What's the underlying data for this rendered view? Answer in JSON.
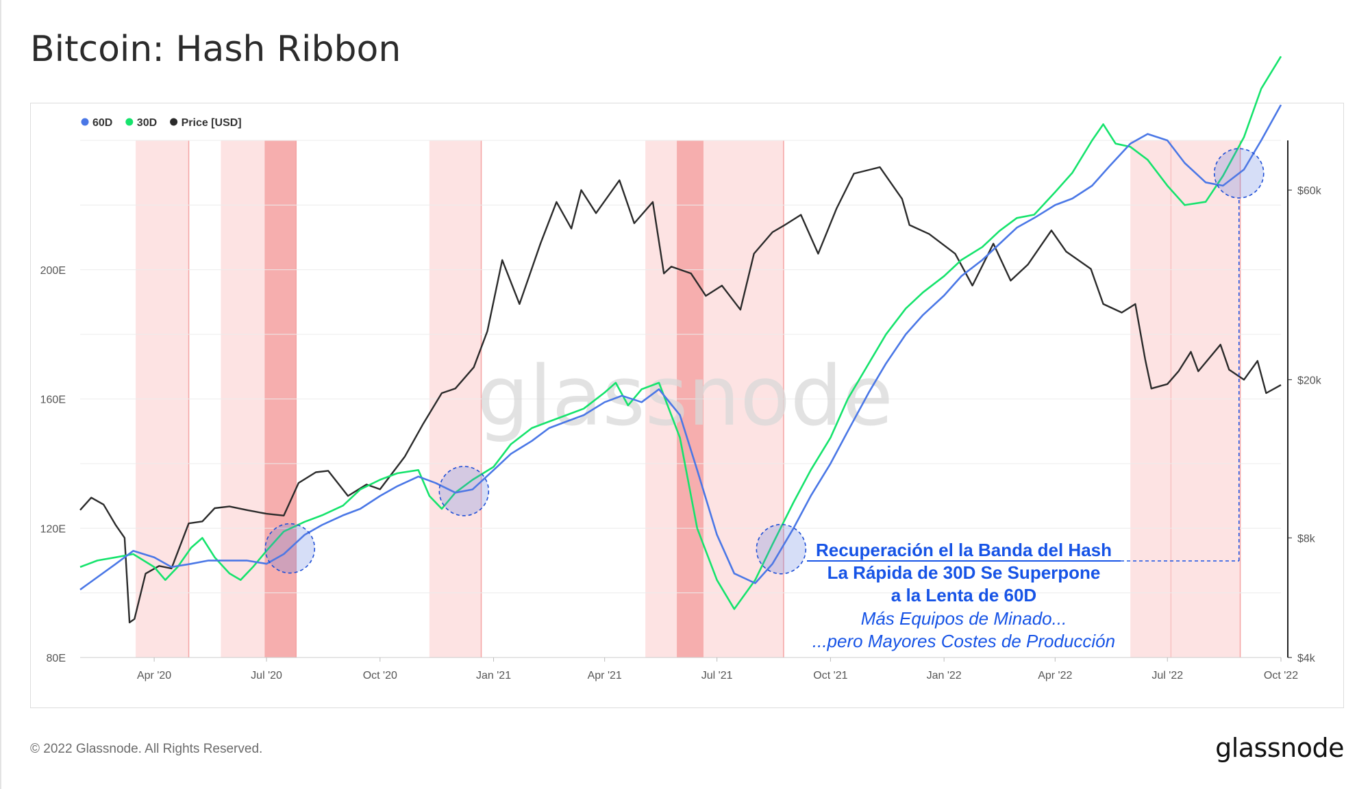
{
  "page": {
    "title": "Bitcoin: Hash Ribbon",
    "copyright": "© 2022 Glassnode. All Rights Reserved.",
    "brand": "glassnode",
    "watermark": "glassnode"
  },
  "chart_data": {
    "type": "line",
    "title": "Bitcoin: Hash Ribbon",
    "x_range": [
      "2020-02-01",
      "2022-10-01"
    ],
    "x_ticks": [
      "Apr '20",
      "Jul '20",
      "Oct '20",
      "Jan '21",
      "Apr '21",
      "Jul '21",
      "Oct '21",
      "Jan '22",
      "Apr '22",
      "Jul '22",
      "Oct '22"
    ],
    "y_left": {
      "label": "",
      "ticks": [
        "80E",
        "120E",
        "160E",
        "200E"
      ],
      "range": [
        80,
        240
      ]
    },
    "y_right": {
      "label": "",
      "scale": "log",
      "ticks": [
        "$4k",
        "$8k",
        "$20k",
        "$60k"
      ],
      "range": [
        4000,
        80000
      ]
    },
    "legend": {
      "placement": "top-left",
      "items": [
        {
          "name": "60D",
          "color": "#4a77e6"
        },
        {
          "name": "30D",
          "color": "#15e36c"
        },
        {
          "name": "Price [USD]",
          "color": "#2a2a2a"
        }
      ]
    },
    "series": [
      {
        "name": "60D",
        "axis": "left",
        "color": "#4a77e6",
        "points": [
          [
            "2020-02-01",
            101
          ],
          [
            "2020-03-01",
            109
          ],
          [
            "2020-03-15",
            113
          ],
          [
            "2020-04-01",
            111
          ],
          [
            "2020-04-15",
            108
          ],
          [
            "2020-05-01",
            109
          ],
          [
            "2020-05-15",
            110
          ],
          [
            "2020-06-01",
            110
          ],
          [
            "2020-06-15",
            110
          ],
          [
            "2020-07-01",
            109
          ],
          [
            "2020-07-15",
            112
          ],
          [
            "2020-08-01",
            118
          ],
          [
            "2020-08-15",
            121
          ],
          [
            "2020-09-01",
            124
          ],
          [
            "2020-09-15",
            126
          ],
          [
            "2020-10-01",
            130
          ],
          [
            "2020-10-15",
            133
          ],
          [
            "2020-11-01",
            136
          ],
          [
            "2020-11-15",
            134
          ],
          [
            "2020-12-01",
            131
          ],
          [
            "2020-12-15",
            132
          ],
          [
            "2021-01-01",
            138
          ],
          [
            "2021-01-15",
            143
          ],
          [
            "2021-02-01",
            147
          ],
          [
            "2021-02-15",
            151
          ],
          [
            "2021-03-01",
            153
          ],
          [
            "2021-03-15",
            155
          ],
          [
            "2021-04-01",
            159
          ],
          [
            "2021-04-15",
            161
          ],
          [
            "2021-05-01",
            159
          ],
          [
            "2021-05-15",
            163
          ],
          [
            "2021-06-01",
            155
          ],
          [
            "2021-06-15",
            138
          ],
          [
            "2021-07-01",
            118
          ],
          [
            "2021-07-15",
            106
          ],
          [
            "2021-08-01",
            103
          ],
          [
            "2021-08-15",
            109
          ],
          [
            "2021-09-01",
            120
          ],
          [
            "2021-09-15",
            130
          ],
          [
            "2021-10-01",
            140
          ],
          [
            "2021-10-15",
            150
          ],
          [
            "2021-11-01",
            162
          ],
          [
            "2021-11-15",
            171
          ],
          [
            "2021-12-01",
            180
          ],
          [
            "2021-12-15",
            186
          ],
          [
            "2022-01-01",
            192
          ],
          [
            "2022-01-15",
            198
          ],
          [
            "2022-02-01",
            203
          ],
          [
            "2022-02-15",
            208
          ],
          [
            "2022-03-01",
            213
          ],
          [
            "2022-03-15",
            216
          ],
          [
            "2022-04-01",
            220
          ],
          [
            "2022-04-15",
            222
          ],
          [
            "2022-05-01",
            226
          ],
          [
            "2022-05-15",
            232
          ],
          [
            "2022-06-01",
            239
          ],
          [
            "2022-06-15",
            242
          ],
          [
            "2022-07-01",
            240
          ],
          [
            "2022-07-15",
            233
          ],
          [
            "2022-08-01",
            227
          ],
          [
            "2022-08-15",
            226
          ],
          [
            "2022-09-01",
            231
          ],
          [
            "2022-09-15",
            240
          ],
          [
            "2022-10-01",
            251
          ]
        ]
      },
      {
        "name": "30D",
        "axis": "left",
        "color": "#15e36c",
        "points": [
          [
            "2020-02-01",
            108
          ],
          [
            "2020-02-15",
            110
          ],
          [
            "2020-03-01",
            111
          ],
          [
            "2020-03-15",
            112
          ],
          [
            "2020-04-01",
            108
          ],
          [
            "2020-04-10",
            104
          ],
          [
            "2020-04-20",
            108
          ],
          [
            "2020-05-01",
            114
          ],
          [
            "2020-05-10",
            117
          ],
          [
            "2020-05-20",
            111
          ],
          [
            "2020-06-01",
            106
          ],
          [
            "2020-06-10",
            104
          ],
          [
            "2020-06-20",
            108
          ],
          [
            "2020-07-01",
            113
          ],
          [
            "2020-07-15",
            119
          ],
          [
            "2020-08-01",
            122
          ],
          [
            "2020-08-15",
            124
          ],
          [
            "2020-09-01",
            127
          ],
          [
            "2020-09-15",
            132
          ],
          [
            "2020-10-01",
            135
          ],
          [
            "2020-10-15",
            137
          ],
          [
            "2020-11-01",
            138
          ],
          [
            "2020-11-10",
            130
          ],
          [
            "2020-11-20",
            126
          ],
          [
            "2020-12-01",
            131
          ],
          [
            "2020-12-15",
            135
          ],
          [
            "2021-01-01",
            139
          ],
          [
            "2021-01-15",
            146
          ],
          [
            "2021-02-01",
            151
          ],
          [
            "2021-02-15",
            153
          ],
          [
            "2021-03-01",
            155
          ],
          [
            "2021-03-15",
            157
          ],
          [
            "2021-04-01",
            162
          ],
          [
            "2021-04-10",
            165
          ],
          [
            "2021-04-20",
            158
          ],
          [
            "2021-05-01",
            163
          ],
          [
            "2021-05-15",
            165
          ],
          [
            "2021-06-01",
            148
          ],
          [
            "2021-06-15",
            120
          ],
          [
            "2021-07-01",
            104
          ],
          [
            "2021-07-15",
            95
          ],
          [
            "2021-08-01",
            104
          ],
          [
            "2021-08-15",
            115
          ],
          [
            "2021-09-01",
            128
          ],
          [
            "2021-09-15",
            138
          ],
          [
            "2021-10-01",
            148
          ],
          [
            "2021-10-15",
            160
          ],
          [
            "2021-11-01",
            171
          ],
          [
            "2021-11-15",
            180
          ],
          [
            "2021-12-01",
            188
          ],
          [
            "2021-12-15",
            193
          ],
          [
            "2022-01-01",
            198
          ],
          [
            "2022-01-15",
            203
          ],
          [
            "2022-02-01",
            207
          ],
          [
            "2022-02-15",
            212
          ],
          [
            "2022-03-01",
            216
          ],
          [
            "2022-03-15",
            217
          ],
          [
            "2022-04-01",
            224
          ],
          [
            "2022-04-15",
            230
          ],
          [
            "2022-05-01",
            240
          ],
          [
            "2022-05-10",
            245
          ],
          [
            "2022-05-20",
            239
          ],
          [
            "2022-06-01",
            238
          ],
          [
            "2022-06-15",
            234
          ],
          [
            "2022-07-01",
            226
          ],
          [
            "2022-07-15",
            220
          ],
          [
            "2022-08-01",
            221
          ],
          [
            "2022-08-15",
            229
          ],
          [
            "2022-09-01",
            241
          ],
          [
            "2022-09-15",
            256
          ],
          [
            "2022-10-01",
            266
          ]
        ]
      },
      {
        "name": "Price [USD]",
        "axis": "right",
        "color": "#2a2a2a",
        "points": [
          [
            "2020-02-01",
            9400
          ],
          [
            "2020-02-10",
            10100
          ],
          [
            "2020-02-20",
            9700
          ],
          [
            "2020-03-01",
            8600
          ],
          [
            "2020-03-08",
            8000
          ],
          [
            "2020-03-12",
            4900
          ],
          [
            "2020-03-16",
            5000
          ],
          [
            "2020-03-25",
            6500
          ],
          [
            "2020-04-05",
            6800
          ],
          [
            "2020-04-15",
            6700
          ],
          [
            "2020-04-29",
            8700
          ],
          [
            "2020-05-10",
            8800
          ],
          [
            "2020-05-20",
            9500
          ],
          [
            "2020-06-01",
            9600
          ],
          [
            "2020-06-15",
            9400
          ],
          [
            "2020-07-01",
            9200
          ],
          [
            "2020-07-15",
            9100
          ],
          [
            "2020-07-27",
            11000
          ],
          [
            "2020-08-10",
            11700
          ],
          [
            "2020-08-20",
            11800
          ],
          [
            "2020-09-05",
            10200
          ],
          [
            "2020-09-20",
            10900
          ],
          [
            "2020-10-01",
            10600
          ],
          [
            "2020-10-21",
            12800
          ],
          [
            "2020-11-05",
            15500
          ],
          [
            "2020-11-20",
            18500
          ],
          [
            "2020-12-01",
            19000
          ],
          [
            "2020-12-16",
            21500
          ],
          [
            "2020-12-27",
            26500
          ],
          [
            "2021-01-08",
            40000
          ],
          [
            "2021-01-22",
            31000
          ],
          [
            "2021-02-08",
            44000
          ],
          [
            "2021-02-21",
            56000
          ],
          [
            "2021-03-05",
            48000
          ],
          [
            "2021-03-13",
            60000
          ],
          [
            "2021-03-25",
            52500
          ],
          [
            "2021-04-13",
            63500
          ],
          [
            "2021-04-25",
            49500
          ],
          [
            "2021-05-10",
            56000
          ],
          [
            "2021-05-19",
            37000
          ],
          [
            "2021-05-25",
            38500
          ],
          [
            "2021-06-10",
            37000
          ],
          [
            "2021-06-22",
            32500
          ],
          [
            "2021-07-05",
            34500
          ],
          [
            "2021-07-20",
            30000
          ],
          [
            "2021-07-31",
            41500
          ],
          [
            "2021-08-15",
            47000
          ],
          [
            "2021-08-25",
            49000
          ],
          [
            "2021-09-07",
            52000
          ],
          [
            "2021-09-21",
            41500
          ],
          [
            "2021-10-06",
            54000
          ],
          [
            "2021-10-20",
            66000
          ],
          [
            "2021-11-10",
            68500
          ],
          [
            "2021-11-28",
            57000
          ],
          [
            "2021-12-04",
            49000
          ],
          [
            "2021-12-20",
            46500
          ],
          [
            "2022-01-10",
            41500
          ],
          [
            "2022-01-24",
            34500
          ],
          [
            "2022-02-10",
            44000
          ],
          [
            "2022-02-24",
            35500
          ],
          [
            "2022-03-10",
            39000
          ],
          [
            "2022-03-29",
            47500
          ],
          [
            "2022-04-10",
            42000
          ],
          [
            "2022-04-30",
            38000
          ],
          [
            "2022-05-10",
            31000
          ],
          [
            "2022-05-25",
            29500
          ],
          [
            "2022-06-05",
            31000
          ],
          [
            "2022-06-13",
            22500
          ],
          [
            "2022-06-18",
            19000
          ],
          [
            "2022-07-01",
            19500
          ],
          [
            "2022-07-10",
            21000
          ],
          [
            "2022-07-20",
            23500
          ],
          [
            "2022-07-26",
            21000
          ],
          [
            "2022-08-13",
            24500
          ],
          [
            "2022-08-20",
            21200
          ],
          [
            "2022-09-01",
            20000
          ],
          [
            "2022-09-12",
            22300
          ],
          [
            "2022-09-19",
            18500
          ],
          [
            "2022-10-01",
            19400
          ]
        ]
      }
    ],
    "shaded_regions": [
      {
        "start": "2020-03-17",
        "end": "2020-04-29",
        "intensity": "light"
      },
      {
        "start": "2020-05-25",
        "end": "2020-06-30",
        "intensity": "light"
      },
      {
        "start": "2020-06-30",
        "end": "2020-07-25",
        "intensity": "dark"
      },
      {
        "start": "2020-11-10",
        "end": "2020-12-22",
        "intensity": "light"
      },
      {
        "start": "2021-05-04",
        "end": "2021-05-30",
        "intensity": "light"
      },
      {
        "start": "2021-05-30",
        "end": "2021-06-20",
        "intensity": "dark"
      },
      {
        "start": "2021-06-20",
        "end": "2021-08-24",
        "intensity": "light"
      },
      {
        "start": "2022-06-01",
        "end": "2022-07-04",
        "intensity": "light"
      },
      {
        "start": "2022-07-04",
        "end": "2022-08-29",
        "intensity": "light"
      }
    ],
    "highlight_circles": [
      "2020-07-20",
      "2020-12-08",
      "2021-08-22",
      "2022-08-28"
    ],
    "annotation": {
      "lines": [
        {
          "text": "Recuperación el la Banda del Hash",
          "style": "bold-underline"
        },
        {
          "text": "La Rápida de 30D Se Superpone",
          "style": "bold"
        },
        {
          "text": "a la Lenta de 60D",
          "style": "bold"
        },
        {
          "text": "Más Equipos de Minado...",
          "style": "italic"
        },
        {
          "text": "...pero Mayores Costes de Producción",
          "style": "italic"
        }
      ],
      "color": "#1653e6"
    },
    "colors": {
      "shade_light": "#fde3e3",
      "shade_dark": "#f6aeae",
      "grid": "#ececec"
    }
  }
}
